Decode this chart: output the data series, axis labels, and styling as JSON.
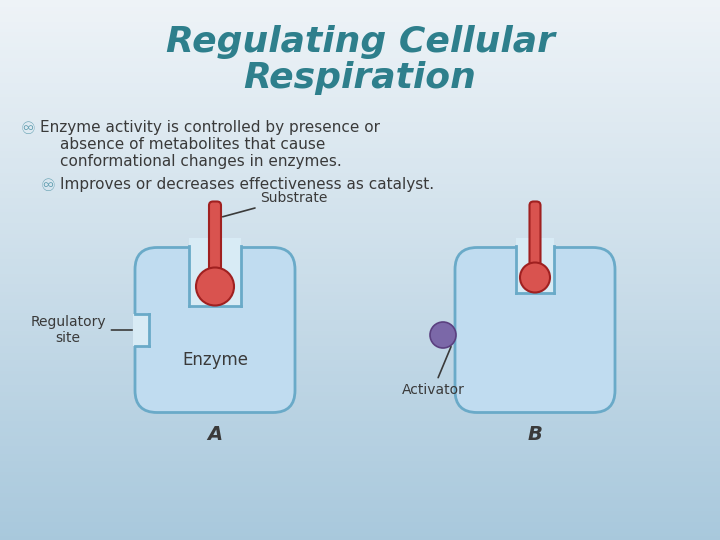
{
  "title_line1": "Regulating Cellular",
  "title_line2": "Respiration",
  "title_color": "#2E7F8C",
  "bullet_color": "#5B9BAD",
  "text_color": "#3A3A3A",
  "bg_top": "#EEF3F7",
  "bg_bottom": "#A8C8DC",
  "enzyme_fill": "#C0DCF0",
  "enzyme_edge": "#6AAAC8",
  "substrate_fill": "#D9534F",
  "substrate_edge": "#A02020",
  "activator_fill": "#7B68A8",
  "activator_edge": "#5B4080",
  "label_a": "A",
  "label_b": "B",
  "label_enzyme": "Enzyme",
  "label_substrate": "Substrate",
  "label_regulatory": "Regulatory\nsite",
  "label_activator": "Activator",
  "fig_w": 7.2,
  "fig_h": 5.4,
  "dpi": 100
}
